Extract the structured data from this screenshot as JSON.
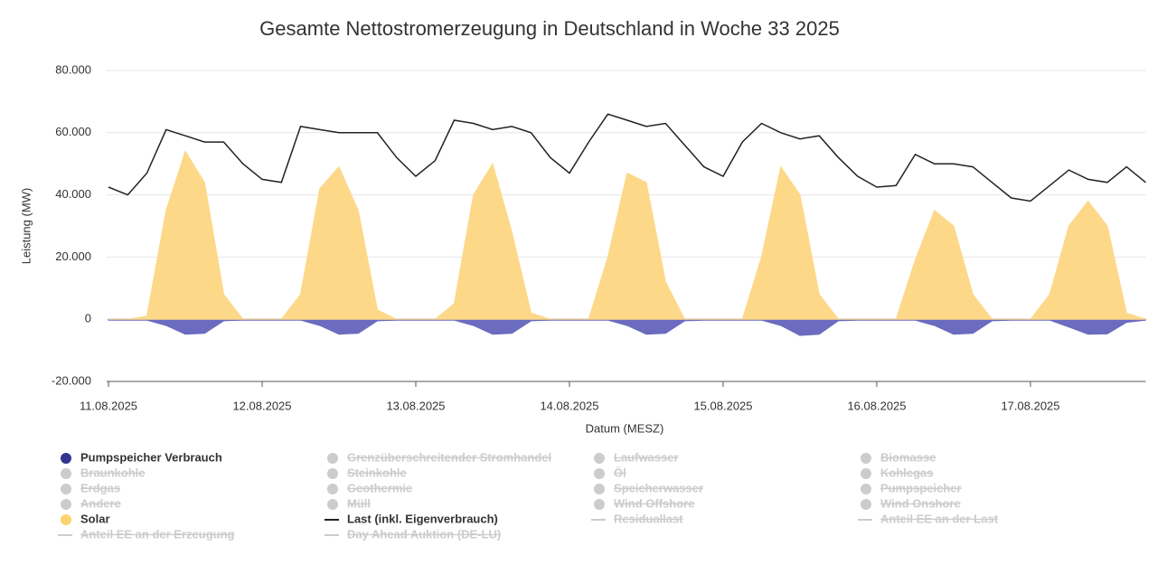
{
  "chart_data": {
    "type": "line",
    "title": "Gesamte Nettostromerzeugung in Deutschland in Woche 33 2025",
    "xlabel": "Datum (MESZ)",
    "ylabel": "Leistung (MW)",
    "x": [
      0,
      0.125,
      0.25,
      0.375,
      0.5,
      0.625,
      0.75,
      0.875,
      1,
      1.125,
      1.25,
      1.375,
      1.5,
      1.625,
      1.75,
      1.875,
      2,
      2.125,
      2.25,
      2.375,
      2.5,
      2.625,
      2.75,
      2.875,
      3,
      3.125,
      3.25,
      3.375,
      3.5,
      3.625,
      3.75,
      3.875,
      4,
      4.125,
      4.25,
      4.375,
      4.5,
      4.625,
      4.75,
      4.875,
      5,
      5.125,
      5.25,
      5.375,
      5.5,
      5.625,
      5.75,
      5.875,
      6,
      6.125,
      6.25,
      6.375,
      6.5,
      6.625,
      6.75
    ],
    "xlim": [
      0,
      6.75
    ],
    "xticks": [
      {
        "value": 0,
        "label": "11.08.2025"
      },
      {
        "value": 1,
        "label": "12.08.2025"
      },
      {
        "value": 2,
        "label": "13.08.2025"
      },
      {
        "value": 3,
        "label": "14.08.2025"
      },
      {
        "value": 4,
        "label": "15.08.2025"
      },
      {
        "value": 5,
        "label": "16.08.2025"
      },
      {
        "value": 6,
        "label": "17.08.2025"
      }
    ],
    "ylim": [
      -20000,
      80000
    ],
    "yticks": [
      {
        "value": -20000,
        "label": "-20.000"
      },
      0,
      {
        "value": 20000,
        "label": "20.000"
      },
      {
        "value": 40000,
        "label": "40.000"
      },
      {
        "value": 60000,
        "label": "60.000"
      },
      {
        "value": 80000,
        "label": "80.000"
      }
    ],
    "grid": true,
    "series": [
      {
        "name": "Pumpspeicher Verbrauch",
        "color": "#6b6bbf",
        "style": "area",
        "values": [
          -300,
          -300,
          -300,
          -2000,
          -4800,
          -4500,
          -500,
          -300,
          -300,
          -300,
          -300,
          -2000,
          -4800,
          -4500,
          -500,
          -300,
          -300,
          -300,
          -300,
          -2000,
          -4800,
          -4500,
          -500,
          -300,
          -300,
          -300,
          -300,
          -2000,
          -4800,
          -4500,
          -500,
          -300,
          -300,
          -300,
          -300,
          -2000,
          -5200,
          -4800,
          -500,
          -300,
          -300,
          -300,
          -300,
          -2000,
          -4800,
          -4500,
          -500,
          -300,
          -300,
          -300,
          -2500,
          -4800,
          -4700,
          -1000,
          -300
        ]
      },
      {
        "name": "Solar",
        "color": "#fdd888",
        "style": "area",
        "values": [
          0,
          0,
          1000,
          35000,
          54000,
          44000,
          8000,
          0,
          0,
          0,
          8000,
          42000,
          49000,
          35000,
          3000,
          0,
          0,
          0,
          5000,
          40000,
          50000,
          28000,
          2000,
          0,
          0,
          0,
          20000,
          47000,
          44000,
          12000,
          0,
          0,
          0,
          0,
          20000,
          49000,
          40000,
          8000,
          0,
          0,
          0,
          0,
          19000,
          35000,
          30000,
          8000,
          0,
          0,
          0,
          8000,
          30000,
          38000,
          30000,
          2000,
          0
        ]
      },
      {
        "name": "Last (inkl. Eigenverbrauch)",
        "color": "#222222",
        "style": "line",
        "values": [
          42500,
          40000,
          47000,
          61000,
          59000,
          57000,
          57000,
          50000,
          45000,
          44000,
          62000,
          61000,
          60000,
          60000,
          60000,
          52000,
          46000,
          51000,
          64000,
          63000,
          61000,
          62000,
          60000,
          52000,
          47000,
          57000,
          66000,
          64000,
          62000,
          63000,
          56000,
          49000,
          46000,
          57000,
          63000,
          60000,
          58000,
          59000,
          52000,
          46000,
          42500,
          43000,
          53000,
          50000,
          50000,
          49000,
          44000,
          39000,
          38000,
          43000,
          48000,
          45000,
          44000,
          49000,
          44000
        ]
      }
    ],
    "legend": [
      {
        "name": "Pumpspeicher Verbrauch",
        "symbol": "circle",
        "color": "#33338f",
        "visible": true
      },
      {
        "name": "Grenzüberschreitender Stromhandel",
        "symbol": "circle",
        "color": "#cccccc",
        "visible": false
      },
      {
        "name": "Laufwasser",
        "symbol": "circle",
        "color": "#cccccc",
        "visible": false
      },
      {
        "name": "Biomasse",
        "symbol": "circle",
        "color": "#cccccc",
        "visible": false
      },
      {
        "name": "Braunkohle",
        "symbol": "circle",
        "color": "#cccccc",
        "visible": false
      },
      {
        "name": "Steinkohle",
        "symbol": "circle",
        "color": "#cccccc",
        "visible": false
      },
      {
        "name": "Öl",
        "symbol": "circle",
        "color": "#cccccc",
        "visible": false
      },
      {
        "name": "Kohlegas",
        "symbol": "circle",
        "color": "#cccccc",
        "visible": false
      },
      {
        "name": "Erdgas",
        "symbol": "circle",
        "color": "#cccccc",
        "visible": false
      },
      {
        "name": "Geothermie",
        "symbol": "circle",
        "color": "#cccccc",
        "visible": false
      },
      {
        "name": "Speicherwasser",
        "symbol": "circle",
        "color": "#cccccc",
        "visible": false
      },
      {
        "name": "Pumpspeicher",
        "symbol": "circle",
        "color": "#cccccc",
        "visible": false
      },
      {
        "name": "Andere",
        "symbol": "circle",
        "color": "#cccccc",
        "visible": false
      },
      {
        "name": "Müll",
        "symbol": "circle",
        "color": "#cccccc",
        "visible": false
      },
      {
        "name": "Wind Offshore",
        "symbol": "circle",
        "color": "#cccccc",
        "visible": false
      },
      {
        "name": "Wind Onshore",
        "symbol": "circle",
        "color": "#cccccc",
        "visible": false
      },
      {
        "name": "Solar",
        "symbol": "circle",
        "color": "#fdd270",
        "visible": true
      },
      {
        "name": "Last (inkl. Eigenverbrauch)",
        "symbol": "line",
        "color": "#222222",
        "visible": true
      },
      {
        "name": "Residuallast",
        "symbol": "line",
        "color": "#cccccc",
        "visible": false
      },
      {
        "name": "Anteil EE an der Last",
        "symbol": "line",
        "color": "#cccccc",
        "visible": false
      },
      {
        "name": "Anteil EE an der Erzeugung",
        "symbol": "line",
        "color": "#cccccc",
        "visible": false
      },
      {
        "name": "Day Ahead Auktion (DE-LU)",
        "symbol": "line",
        "color": "#cccccc",
        "visible": false
      }
    ]
  }
}
